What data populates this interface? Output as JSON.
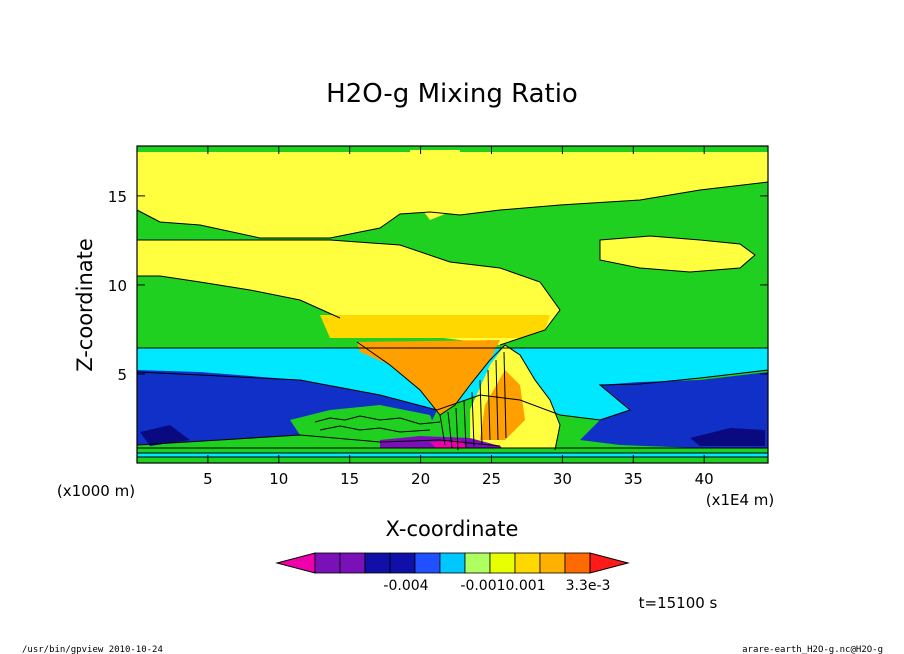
{
  "chart_data": {
    "type": "heatmap",
    "title": "H2O-g Mixing Ratio",
    "xlabel": "X-coordinate",
    "ylabel": "Z-coordinate",
    "x_unit_left": "(x1000 m)",
    "x_unit_right": "(x1E4 m)",
    "xlim": [
      0,
      44.5
    ],
    "ylim": [
      0,
      17.8
    ],
    "x_ticks": [
      "5",
      "10",
      "15",
      "20",
      "25",
      "30",
      "35",
      "40"
    ],
    "y_ticks": [
      "5",
      "10",
      "15"
    ],
    "x_tick_values": [
      5,
      10,
      15,
      20,
      25,
      30,
      35,
      40
    ],
    "y_tick_values": [
      5,
      10,
      15
    ],
    "colorbar": {
      "colors": [
        "#ee00aa",
        "#7a10b8",
        "#7a10b8",
        "#1010a8",
        "#1010a8",
        "#2050ff",
        "#00c8ff",
        "#b0ff60",
        "#e8ff00",
        "#ffd800",
        "#ffb000",
        "#ff6a00",
        "#ff1a1a"
      ],
      "labels": [
        "-0.004",
        "-0.0010.001",
        "3.3e-3"
      ]
    },
    "time_label": "t=15100 s"
  },
  "footer": {
    "left": "/usr/bin/gpview   2010-10-24",
    "right": "arare-earth_H2O-g.nc@H2O-g"
  }
}
